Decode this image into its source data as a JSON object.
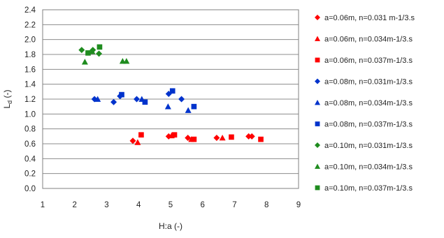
{
  "chart_data": {
    "type": "scatter",
    "title": "",
    "xlabel": "H:a (-)",
    "ylabel_main": "L",
    "ylabel_sub": "d",
    "ylabel_tail": " (-)",
    "xlim": [
      1,
      9
    ],
    "ylim": [
      0,
      2.4
    ],
    "x_ticks": [
      "1",
      "2",
      "3",
      "4",
      "5",
      "6",
      "7",
      "8",
      "9"
    ],
    "y_ticks": [
      "0.0",
      "0.2",
      "0.4",
      "0.6",
      "0.8",
      "1.0",
      "1.2",
      "1.4",
      "1.6",
      "1.8",
      "2.0",
      "2.2",
      "2.4"
    ],
    "grid": "horizontal",
    "legend_position": "right",
    "series": [
      {
        "name": "a=0.06m, n=0.031 m-1/3.s",
        "color": "#ff0000",
        "marker": "diamond",
        "x": [
          3.82,
          4.94,
          5.54,
          6.44,
          7.44,
          7.54
        ],
        "y": [
          0.64,
          0.7,
          0.68,
          0.68,
          0.7,
          0.7
        ]
      },
      {
        "name": "a=0.06m, n=0.034m-1/3.s",
        "color": "#ff0000",
        "marker": "triangle",
        "x": [
          3.97,
          5.03,
          5.65,
          6.62
        ],
        "y": [
          0.62,
          0.71,
          0.66,
          0.68
        ]
      },
      {
        "name": "a=0.06m, n=0.037m-1/3.s",
        "color": "#ff0000",
        "marker": "square",
        "x": [
          4.08,
          5.12,
          5.73,
          6.9,
          7.82
        ],
        "y": [
          0.72,
          0.72,
          0.66,
          0.69,
          0.66
        ]
      },
      {
        "name": "a=0.08m, n=0.031m-1/3.s",
        "color": "#0033cc",
        "marker": "diamond",
        "x": [
          2.62,
          3.22,
          3.42,
          3.94,
          4.94,
          5.34
        ],
        "y": [
          1.2,
          1.16,
          1.24,
          1.2,
          1.27,
          1.2
        ]
      },
      {
        "name": "a=0.08m, n=0.034m-1/3.s",
        "color": "#0033cc",
        "marker": "triangle",
        "x": [
          2.72,
          4.1,
          4.92,
          5.55
        ],
        "y": [
          1.2,
          1.2,
          1.1,
          1.05
        ]
      },
      {
        "name": "a=0.08m, n=0.037m-1/3.s",
        "color": "#0033cc",
        "marker": "square",
        "x": [
          3.47,
          4.2,
          5.06,
          5.73
        ],
        "y": [
          1.26,
          1.16,
          1.31,
          1.1
        ]
      },
      {
        "name": "a=0.10m, n=0.031m-1/3.s",
        "color": "#1f8c1f",
        "marker": "diamond",
        "x": [
          2.22,
          2.57,
          2.76
        ],
        "y": [
          1.86,
          1.86,
          1.81
        ]
      },
      {
        "name": "a=0.10m, n=0.034m-1/3.s",
        "color": "#1f8c1f",
        "marker": "triangle",
        "x": [
          2.32,
          2.55,
          3.5,
          3.62
        ],
        "y": [
          1.7,
          1.84,
          1.71,
          1.71
        ]
      },
      {
        "name": "a=0.10m, n=0.037m-1/3.s",
        "color": "#1f8c1f",
        "marker": "square",
        "x": [
          2.42,
          2.78
        ],
        "y": [
          1.82,
          1.9
        ]
      }
    ]
  }
}
